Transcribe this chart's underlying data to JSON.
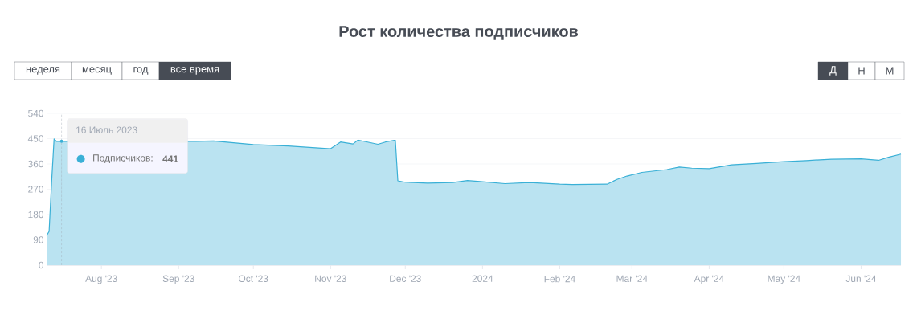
{
  "chart_data": {
    "type": "area",
    "title": "Рост количества подписчиков",
    "x": [
      "2023-07-10",
      "2023-07-11",
      "2023-07-12",
      "2023-07-13",
      "2023-07-14",
      "2023-07-16",
      "2023-08-01",
      "2023-08-15",
      "2023-09-08",
      "2023-09-15",
      "2023-10-01",
      "2023-10-15",
      "2023-11-01",
      "2023-11-05",
      "2023-11-10",
      "2023-11-12",
      "2023-11-20",
      "2023-11-23",
      "2023-11-27",
      "2023-11-28",
      "2023-12-01",
      "2023-12-10",
      "2023-12-20",
      "2023-12-26",
      "2024-01-01",
      "2024-01-10",
      "2024-01-20",
      "2024-02-01",
      "2024-02-06",
      "2024-02-20",
      "2024-02-24",
      "2024-02-28",
      "2024-03-05",
      "2024-03-10",
      "2024-03-15",
      "2024-03-20",
      "2024-03-25",
      "2024-04-01",
      "2024-04-10",
      "2024-04-20",
      "2024-05-01",
      "2024-05-10",
      "2024-05-20",
      "2024-06-01",
      "2024-06-08",
      "2024-06-12",
      "2024-06-17"
    ],
    "series": [
      {
        "color": "#3ab0d6",
        "values": [
          105,
          120,
          295,
          449,
          440,
          441,
          null,
          null,
          440,
          442,
          429,
          424,
          414,
          438,
          431,
          445,
          430,
          438,
          445,
          300,
          295,
          292,
          294,
          301,
          297,
          290,
          294,
          288,
          287,
          288,
          305,
          317,
          330,
          335,
          340,
          349,
          345,
          343,
          357,
          362,
          368,
          372,
          377,
          378,
          373,
          384,
          395
        ]
      }
    ],
    "xlim": [
      "2023-07-10",
      "2024-06-17"
    ],
    "xticks": [
      {
        "value": "2023-08-01",
        "label": "Aug '23"
      },
      {
        "value": "2023-09-01",
        "label": "Sep '23"
      },
      {
        "value": "2023-10-01",
        "label": "Oct '23"
      },
      {
        "value": "2023-11-01",
        "label": "Nov '23"
      },
      {
        "value": "2023-12-01",
        "label": "Dec '23"
      },
      {
        "value": "2024-01-01",
        "label": "2024"
      },
      {
        "value": "2024-02-01",
        "label": "Feb '24"
      },
      {
        "value": "2024-03-01",
        "label": "Mar '24"
      },
      {
        "value": "2024-04-01",
        "label": "Apr '24"
      },
      {
        "value": "2024-05-01",
        "label": "May '24"
      },
      {
        "value": "2024-06-01",
        "label": "Jun '24"
      }
    ],
    "ref_lines": [
      {
        "axis": "x",
        "value": "2023-07-16",
        "color": "#a0a8b4",
        "line_style": "dashed"
      }
    ],
    "ylim": [
      0,
      540
    ],
    "yticks": [
      0,
      90,
      180,
      270,
      360,
      450,
      540
    ],
    "grid": "y",
    "annotations": [
      {
        "text": "16 Июль 2023",
        "x": "2023-07-16",
        "y": 441
      },
      "Подписчиков:",
      "441",
      "неделя",
      "месяц",
      "год",
      "все время",
      "Д",
      "Н",
      "М"
    ]
  }
}
